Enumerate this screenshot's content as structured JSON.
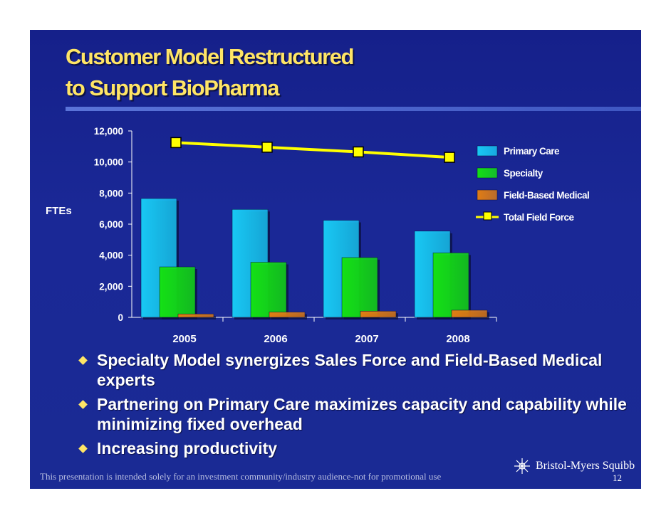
{
  "title": {
    "line1": "Customer Model Restructured",
    "line2": "to Support BioPharma"
  },
  "colors": {
    "background": "#1a2896",
    "title": "#ffe566",
    "primary_care": "#18c8f4",
    "specialty": "#14e014",
    "field_based_medical": "#e07c14",
    "total_field_force": "#ffff00"
  },
  "chart_data": {
    "type": "bar",
    "categories": [
      "2005",
      "2006",
      "2007",
      "2008"
    ],
    "ylabel": "FTEs",
    "ylim": [
      0,
      12000
    ],
    "yticks": [
      "0",
      "2,000",
      "4,000",
      "6,000",
      "8,000",
      "10,000",
      "12,000"
    ],
    "legend_position": "right",
    "series": [
      {
        "name": "Primary Care",
        "type": "bar",
        "values": [
          7650,
          6950,
          6250,
          5550
        ]
      },
      {
        "name": "Specialty",
        "type": "bar",
        "values": [
          3250,
          3550,
          3850,
          4150
        ]
      },
      {
        "name": "Field-Based Medical",
        "type": "bar",
        "values": [
          220,
          340,
          400,
          460
        ]
      },
      {
        "name": "Total Field Force",
        "type": "line",
        "values": [
          11250,
          10950,
          10650,
          10300
        ]
      }
    ]
  },
  "bullets": [
    "Specialty Model synergizes Sales Force and Field-Based Medical experts",
    "Partnering on Primary Care maximizes capacity and capability while minimizing fixed overhead",
    "Increasing productivity"
  ],
  "footer": {
    "disclaimer": "This presentation is intended solely for an investment community/industry audience-not for promotional use",
    "logo_text": "Bristol-Myers Squibb",
    "page_number": "12"
  }
}
